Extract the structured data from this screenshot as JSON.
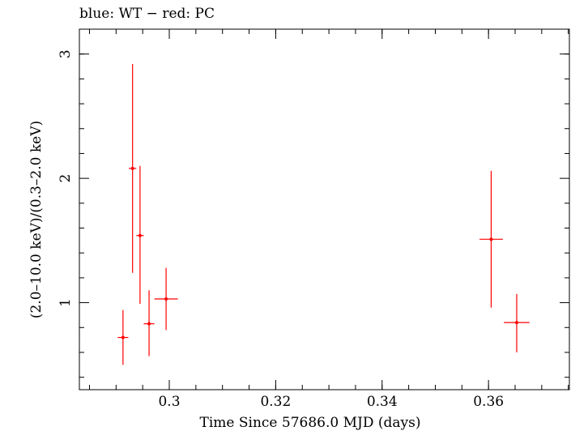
{
  "chart_data": {
    "type": "scatter",
    "title": "blue: WT − red: PC",
    "xlabel": "Time Since 57686.0 MJD (days)",
    "ylabel": "(2.0–10.0 keV)/(0.3–2.0 keV)",
    "xlim": [
      0.2831,
      0.3752
    ],
    "ylim": [
      0.3,
      3.2
    ],
    "x_ticks_major": [
      0.3,
      0.32,
      0.34,
      0.36
    ],
    "x_tick_labels": [
      "0.3",
      "0.32",
      "0.34",
      "0.36"
    ],
    "x_ticks_minor_step": 0.005,
    "y_ticks_major": [
      1,
      2,
      3
    ],
    "y_tick_labels": [
      "1",
      "2",
      "3"
    ],
    "y_ticks_minor": [
      0.4,
      0.6,
      0.8,
      1.2,
      1.4,
      1.6,
      1.8,
      2.2,
      2.4,
      2.6,
      2.8,
      3.0
    ],
    "grid": false,
    "series": [
      {
        "color": "#ff0000",
        "points": [
          {
            "x": 0.2913,
            "y": 0.72,
            "xerr": 0.001,
            "ylo": 0.5,
            "yhi": 0.94
          },
          {
            "x": 0.2931,
            "y": 2.08,
            "xerr": 0.0007,
            "ylo": 1.24,
            "yhi": 2.92
          },
          {
            "x": 0.2945,
            "y": 1.54,
            "xerr": 0.0007,
            "ylo": 0.99,
            "yhi": 2.1
          },
          {
            "x": 0.2962,
            "y": 0.83,
            "xerr": 0.001,
            "ylo": 0.57,
            "yhi": 1.1
          },
          {
            "x": 0.2994,
            "y": 1.03,
            "xerr": 0.0022,
            "ylo": 0.78,
            "yhi": 1.28
          },
          {
            "x": 0.3605,
            "y": 1.51,
            "xerr": 0.0022,
            "ylo": 0.96,
            "yhi": 2.06
          },
          {
            "x": 0.3653,
            "y": 0.84,
            "xerr": 0.0024,
            "ylo": 0.6,
            "yhi": 1.07
          }
        ]
      }
    ]
  }
}
